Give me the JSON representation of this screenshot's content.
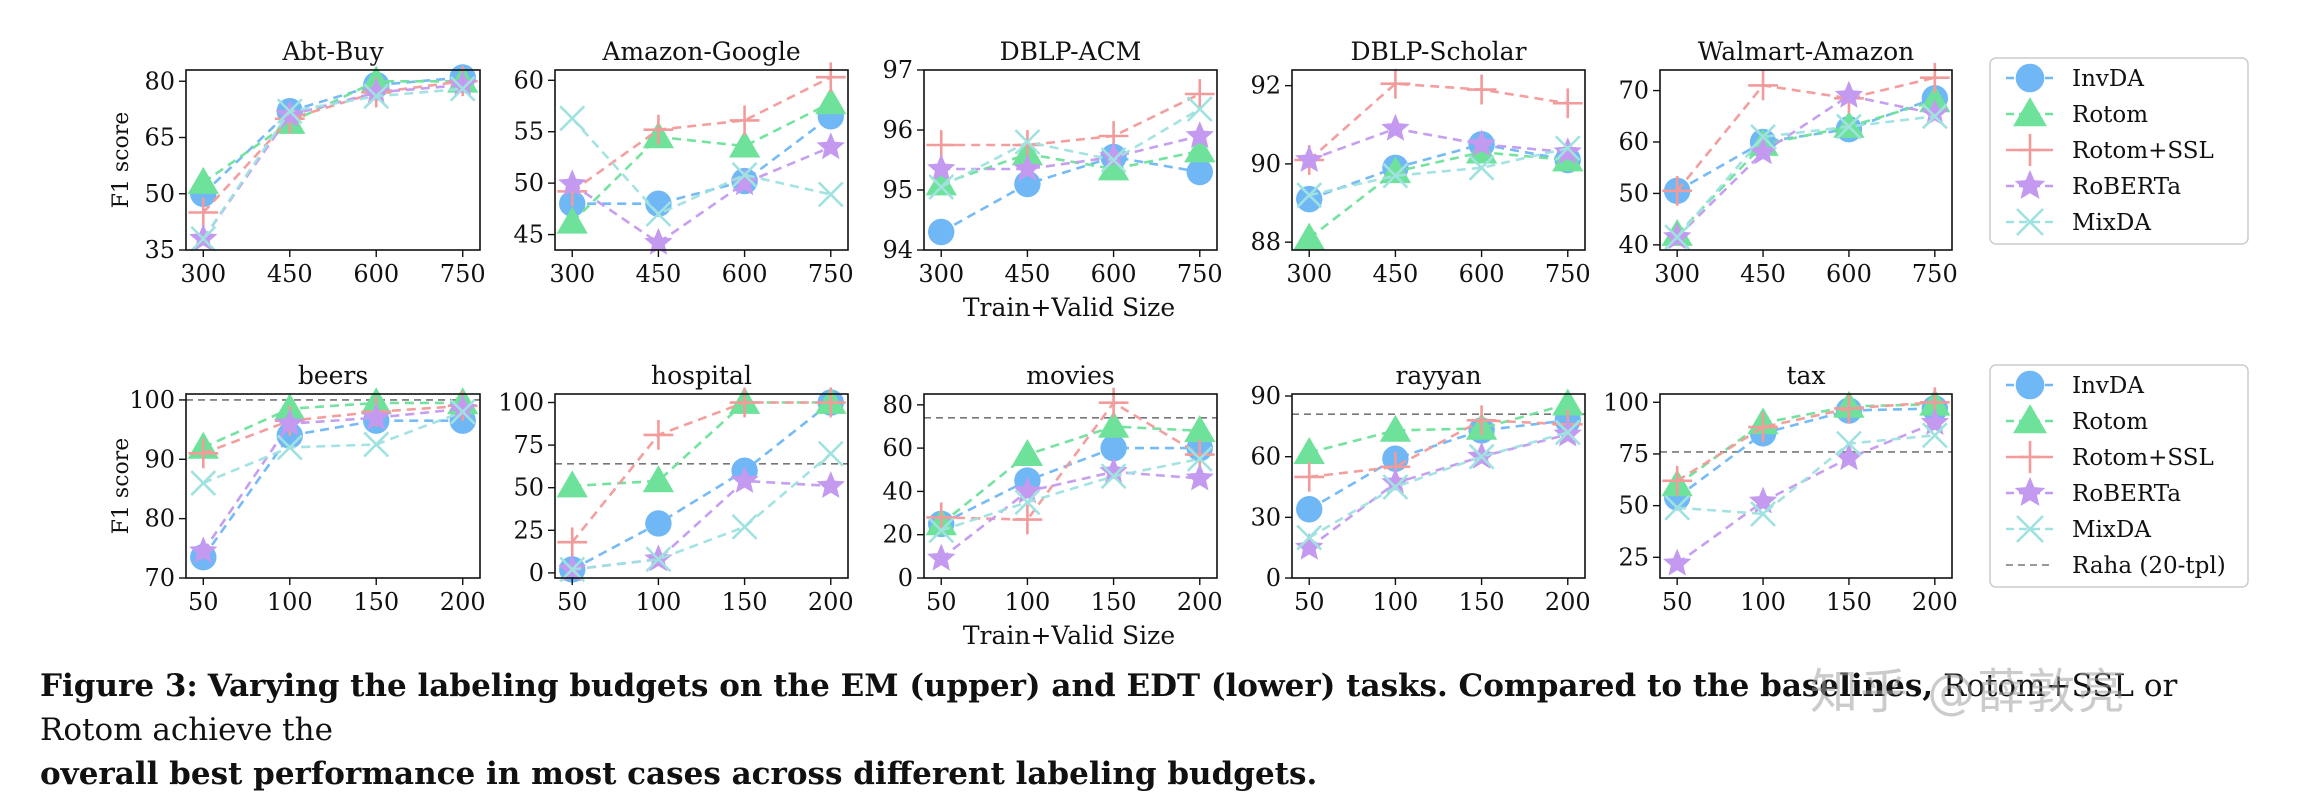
{
  "caption": {
    "label": "Figure 3:",
    "bold": "Varying the labeling budgets on the EM (upper) and EDT (lower) tasks. Compared to the baselines,",
    "normal": " Rotom+SSL or Rotom achieve the",
    "bold2": "overall best performance in most cases across different labeling budgets."
  },
  "watermark": "知乎 @薛敦亮",
  "row_xlabels": [
    "Train+Valid Size",
    "Train+Valid Size"
  ],
  "row_ylabels": [
    "F1 score",
    "F1 score"
  ],
  "legends": [
    [
      "InvDA",
      "Rotom",
      "Rotom+SSL",
      "RoBERTa",
      "MixDA"
    ],
    [
      "InvDA",
      "Rotom",
      "Rotom+SSL",
      "RoBERTa",
      "MixDA",
      "Raha (20-tpl)"
    ]
  ],
  "series_colors": {
    "InvDA": "#6fb7f5",
    "Rotom": "#6ee29a",
    "Rotom+SSL": "#f39a9a",
    "RoBERTa": "#c39af0",
    "MixDA": "#9fe2e0",
    "Raha (20-tpl)": "#777777"
  },
  "series_markers": {
    "InvDA": "circle",
    "Rotom": "triangle",
    "Rotom+SSL": "plus",
    "RoBERTa": "star",
    "MixDA": "x"
  },
  "chart_data": [
    {
      "type": "line",
      "title": "Abt-Buy",
      "row": 0,
      "x": [
        300,
        450,
        600,
        750
      ],
      "xlim": [
        270,
        780
      ],
      "ylim": [
        35,
        83
      ],
      "yticks": [
        35,
        50,
        65,
        80
      ],
      "series": [
        {
          "name": "InvDA",
          "values": [
            50,
            72,
            79,
            81
          ]
        },
        {
          "name": "Rotom",
          "values": [
            53,
            69,
            80,
            80
          ]
        },
        {
          "name": "Rotom+SSL",
          "values": [
            45,
            70,
            77,
            80
          ]
        },
        {
          "name": "RoBERTa",
          "values": [
            38,
            71,
            77,
            79
          ]
        },
        {
          "name": "MixDA",
          "values": [
            38,
            72,
            76,
            78
          ]
        }
      ]
    },
    {
      "type": "line",
      "title": "Amazon-Google",
      "row": 0,
      "x": [
        300,
        450,
        600,
        750
      ],
      "xlim": [
        270,
        780
      ],
      "ylim": [
        43.5,
        61
      ],
      "yticks": [
        45,
        50,
        55,
        60
      ],
      "series": [
        {
          "name": "InvDA",
          "values": [
            48,
            48,
            50.2,
            56.5
          ]
        },
        {
          "name": "Rotom",
          "values": [
            46.2,
            54.5,
            53.6,
            57.8
          ]
        },
        {
          "name": "Rotom+SSL",
          "values": [
            49.2,
            55.2,
            56.1,
            60.3
          ]
        },
        {
          "name": "RoBERTa",
          "values": [
            49.9,
            44.2,
            50,
            53.5
          ]
        },
        {
          "name": "MixDA",
          "values": [
            56.3,
            47,
            50.8,
            48.9
          ]
        }
      ]
    },
    {
      "type": "line",
      "title": "DBLP-ACM",
      "row": 0,
      "x": [
        300,
        450,
        600,
        750
      ],
      "xlim": [
        270,
        780
      ],
      "ylim": [
        94,
        97
      ],
      "yticks": [
        94,
        95,
        96,
        97
      ],
      "series": [
        {
          "name": "InvDA",
          "values": [
            94.3,
            95.1,
            95.55,
            95.3
          ]
        },
        {
          "name": "Rotom",
          "values": [
            95.1,
            95.6,
            95.35,
            95.65
          ]
        },
        {
          "name": "Rotom+SSL",
          "values": [
            95.75,
            95.75,
            95.9,
            96.6
          ]
        },
        {
          "name": "RoBERTa",
          "values": [
            95.35,
            95.35,
            95.55,
            95.9
          ]
        },
        {
          "name": "MixDA",
          "values": [
            95.05,
            95.8,
            95.5,
            96.35
          ]
        }
      ]
    },
    {
      "type": "line",
      "title": "DBLP-Scholar",
      "row": 0,
      "x": [
        300,
        450,
        600,
        750
      ],
      "xlim": [
        270,
        780
      ],
      "ylim": [
        87.8,
        92.4
      ],
      "yticks": [
        88,
        90,
        92
      ],
      "series": [
        {
          "name": "InvDA",
          "values": [
            89.1,
            89.9,
            90.5,
            90.1
          ]
        },
        {
          "name": "Rotom",
          "values": [
            88.1,
            89.8,
            90.3,
            90.1
          ]
        },
        {
          "name": "Rotom+SSL",
          "values": [
            90.1,
            92.05,
            91.9,
            91.55
          ]
        },
        {
          "name": "RoBERTa",
          "values": [
            90.1,
            90.9,
            90.5,
            90.3
          ]
        },
        {
          "name": "MixDA",
          "values": [
            89.2,
            89.7,
            89.9,
            90.4
          ]
        }
      ]
    },
    {
      "type": "line",
      "title": "Walmart-Amazon",
      "row": 0,
      "x": [
        300,
        450,
        600,
        750
      ],
      "xlim": [
        270,
        780
      ],
      "ylim": [
        39,
        74
      ],
      "yticks": [
        40,
        50,
        60,
        70
      ],
      "series": [
        {
          "name": "InvDA",
          "values": [
            50.5,
            60,
            62.5,
            68.5
          ]
        },
        {
          "name": "Rotom",
          "values": [
            42,
            59.5,
            63,
            68
          ]
        },
        {
          "name": "Rotom+SSL",
          "values": [
            50.5,
            71,
            68.5,
            72.5
          ]
        },
        {
          "name": "RoBERTa",
          "values": [
            41.5,
            58,
            69,
            65.5
          ]
        },
        {
          "name": "MixDA",
          "values": [
            41.5,
            61,
            63,
            65
          ]
        }
      ]
    },
    {
      "type": "line",
      "title": "beers",
      "row": 1,
      "x": [
        50,
        100,
        150,
        200
      ],
      "xlim": [
        40,
        210
      ],
      "ylim": [
        70,
        101
      ],
      "yticks": [
        70,
        80,
        90,
        100
      ],
      "baseline": {
        "name": "Raha (20-tpl)",
        "value": 100
      },
      "series": [
        {
          "name": "InvDA",
          "values": [
            73.5,
            94,
            96.5,
            96.5
          ]
        },
        {
          "name": "Rotom",
          "values": [
            92,
            98.5,
            99.5,
            99.5
          ]
        },
        {
          "name": "Rotom+SSL",
          "values": [
            91,
            96.5,
            98,
            99
          ]
        },
        {
          "name": "RoBERTa",
          "values": [
            74.5,
            96,
            97,
            98.5
          ]
        },
        {
          "name": "MixDA",
          "values": [
            86,
            92,
            92.5,
            98
          ]
        }
      ]
    },
    {
      "type": "line",
      "title": "hospital",
      "row": 1,
      "x": [
        50,
        100,
        150,
        200
      ],
      "xlim": [
        40,
        210
      ],
      "ylim": [
        -3,
        105
      ],
      "yticks": [
        0,
        25,
        50,
        75,
        100
      ],
      "baseline": {
        "name": "Raha (20-tpl)",
        "value": 64
      },
      "series": [
        {
          "name": "InvDA",
          "values": [
            2,
            29,
            60,
            100
          ]
        },
        {
          "name": "Rotom",
          "values": [
            51,
            54,
            100,
            100
          ]
        },
        {
          "name": "Rotom+SSL",
          "values": [
            18,
            81,
            100,
            100
          ]
        },
        {
          "name": "RoBERTa",
          "values": [
            2,
            8,
            54,
            51
          ]
        },
        {
          "name": "MixDA",
          "values": [
            2,
            8,
            27,
            70
          ]
        }
      ]
    },
    {
      "type": "line",
      "title": "movies",
      "row": 1,
      "x": [
        50,
        100,
        150,
        200
      ],
      "xlim": [
        40,
        210
      ],
      "ylim": [
        0,
        85
      ],
      "yticks": [
        0,
        20,
        40,
        60,
        80
      ],
      "baseline": {
        "name": "Raha (20-tpl)",
        "value": 74
      },
      "series": [
        {
          "name": "InvDA",
          "values": [
            25,
            45,
            60,
            60
          ]
        },
        {
          "name": "Rotom",
          "values": [
            25,
            57,
            70,
            68
          ]
        },
        {
          "name": "Rotom+SSL",
          "values": [
            28,
            27,
            81,
            57
          ]
        },
        {
          "name": "RoBERTa",
          "values": [
            9,
            40,
            49,
            46
          ]
        },
        {
          "name": "MixDA",
          "values": [
            22,
            35,
            47,
            55
          ]
        }
      ]
    },
    {
      "type": "line",
      "title": "rayyan",
      "row": 1,
      "x": [
        50,
        100,
        150,
        200
      ],
      "xlim": [
        40,
        210
      ],
      "ylim": [
        0,
        91
      ],
      "yticks": [
        0,
        30,
        60,
        90
      ],
      "baseline": {
        "name": "Raha (20-tpl)",
        "value": 81
      },
      "series": [
        {
          "name": "InvDA",
          "values": [
            34,
            59,
            73,
            78
          ]
        },
        {
          "name": "Rotom",
          "values": [
            62,
            73,
            74,
            86
          ]
        },
        {
          "name": "Rotom+SSL",
          "values": [
            50,
            55,
            78,
            76
          ]
        },
        {
          "name": "RoBERTa",
          "values": [
            15,
            47,
            60,
            71
          ]
        },
        {
          "name": "MixDA",
          "values": [
            20,
            45,
            60,
            72
          ]
        }
      ]
    },
    {
      "type": "line",
      "title": "tax",
      "row": 1,
      "x": [
        50,
        100,
        150,
        200
      ],
      "xlim": [
        40,
        210
      ],
      "ylim": [
        15,
        104
      ],
      "yticks": [
        25,
        50,
        75,
        100
      ],
      "baseline": {
        "name": "Raha (20-tpl)",
        "value": 76
      },
      "series": [
        {
          "name": "InvDA",
          "values": [
            54,
            85,
            96,
            97
          ]
        },
        {
          "name": "Rotom",
          "values": [
            60,
            90,
            98,
            99
          ]
        },
        {
          "name": "Rotom+SSL",
          "values": [
            62,
            88,
            97,
            100
          ]
        },
        {
          "name": "RoBERTa",
          "values": [
            22,
            52,
            73,
            90
          ]
        },
        {
          "name": "MixDA",
          "values": [
            49,
            46,
            80,
            84
          ]
        }
      ]
    }
  ]
}
